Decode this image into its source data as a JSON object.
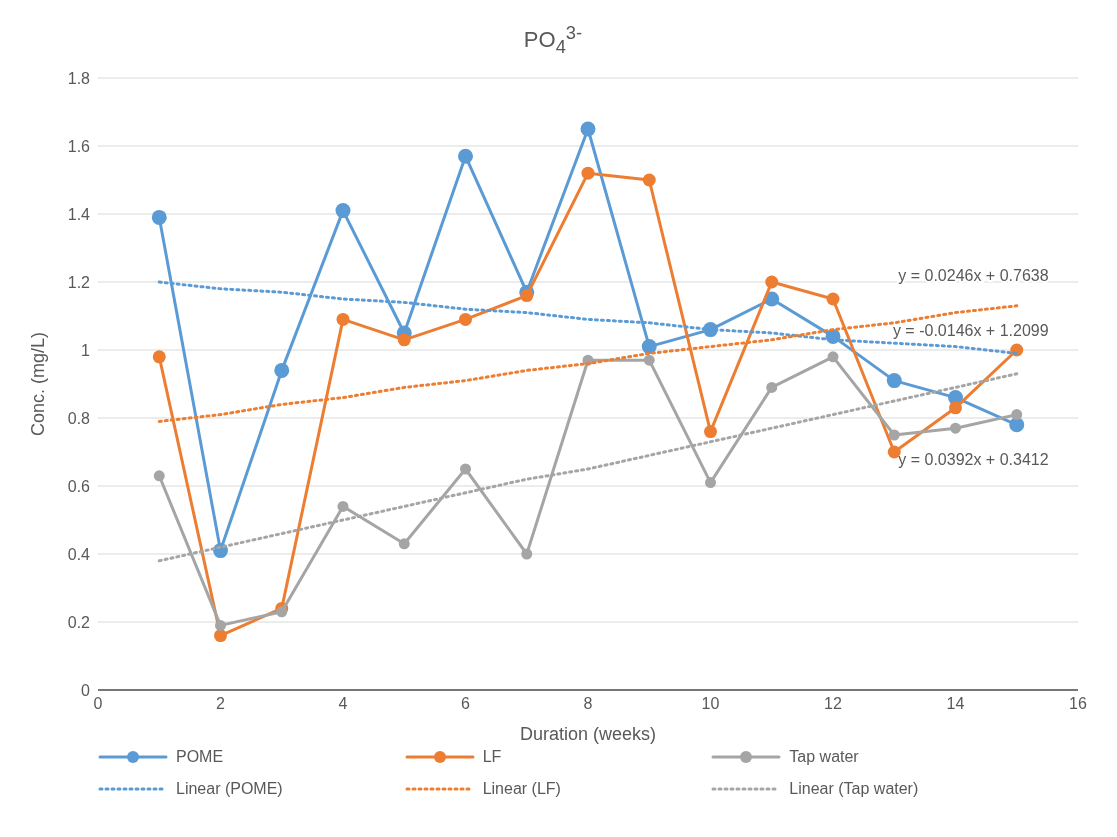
{
  "chart_data": {
    "type": "line",
    "title": "PO$_{4}$$^{3-}$",
    "xlabel": "Duration (weeks)",
    "ylabel": "Conc. (mg/L)",
    "x": [
      1,
      2,
      3,
      4,
      5,
      6,
      7,
      8,
      9,
      10,
      11,
      12,
      13,
      14,
      15
    ],
    "series": [
      {
        "name": "POME",
        "color": "#5b9bd5",
        "values": [
          1.39,
          0.41,
          0.94,
          1.41,
          1.05,
          1.57,
          1.17,
          1.65,
          1.01,
          1.06,
          1.15,
          1.04,
          0.91,
          0.86,
          0.78
        ]
      },
      {
        "name": "LF",
        "color": "#ed7d31",
        "values": [
          0.98,
          0.16,
          0.24,
          1.09,
          1.03,
          1.09,
          1.16,
          1.52,
          1.5,
          0.76,
          1.2,
          1.15,
          0.7,
          0.83,
          1.0
        ]
      },
      {
        "name": "Tap water",
        "color": "#a5a5a5",
        "values": [
          0.63,
          0.19,
          0.23,
          0.54,
          0.43,
          0.65,
          0.4,
          0.97,
          0.97,
          0.61,
          0.89,
          0.98,
          0.75,
          0.77,
          0.81
        ]
      },
      {
        "name": "Linear (POME)",
        "color": "#5b9bd5",
        "values": [
          1.2,
          1.18,
          1.17,
          1.15,
          1.14,
          1.12,
          1.11,
          1.09,
          1.08,
          1.06,
          1.05,
          1.03,
          1.02,
          1.01,
          0.99
        ],
        "line_style": "dotted",
        "marker": "none"
      },
      {
        "name": "Linear (LF)",
        "color": "#ed7d31",
        "values": [
          0.79,
          0.81,
          0.84,
          0.86,
          0.89,
          0.91,
          0.94,
          0.96,
          0.99,
          1.01,
          1.03,
          1.06,
          1.08,
          1.11,
          1.13
        ],
        "line_style": "dotted",
        "marker": "none"
      },
      {
        "name": "Linear (Tap water)",
        "color": "#a5a5a5",
        "values": [
          0.38,
          0.42,
          0.46,
          0.5,
          0.54,
          0.58,
          0.62,
          0.65,
          0.69,
          0.73,
          0.77,
          0.81,
          0.85,
          0.89,
          0.93
        ],
        "line_style": "dotted",
        "marker": "none"
      }
    ],
    "annotations": [
      "y = 0.0246x + 0.7638",
      "y = -0.0146x + 1.2099",
      "y = 0.0392x + 0.3412"
    ],
    "xlim": [
      0,
      16
    ],
    "xticks": [
      0,
      2,
      4,
      6,
      8,
      10,
      12,
      14,
      16
    ],
    "ylim": [
      0,
      1.8
    ],
    "yticks": [
      0,
      0.2,
      0.4,
      0.6,
      0.8,
      1,
      1.2,
      1.4,
      1.6,
      1.8
    ],
    "grid": "y",
    "legend": "bottom",
    "marker": "circle",
    "line_style": "solid"
  }
}
